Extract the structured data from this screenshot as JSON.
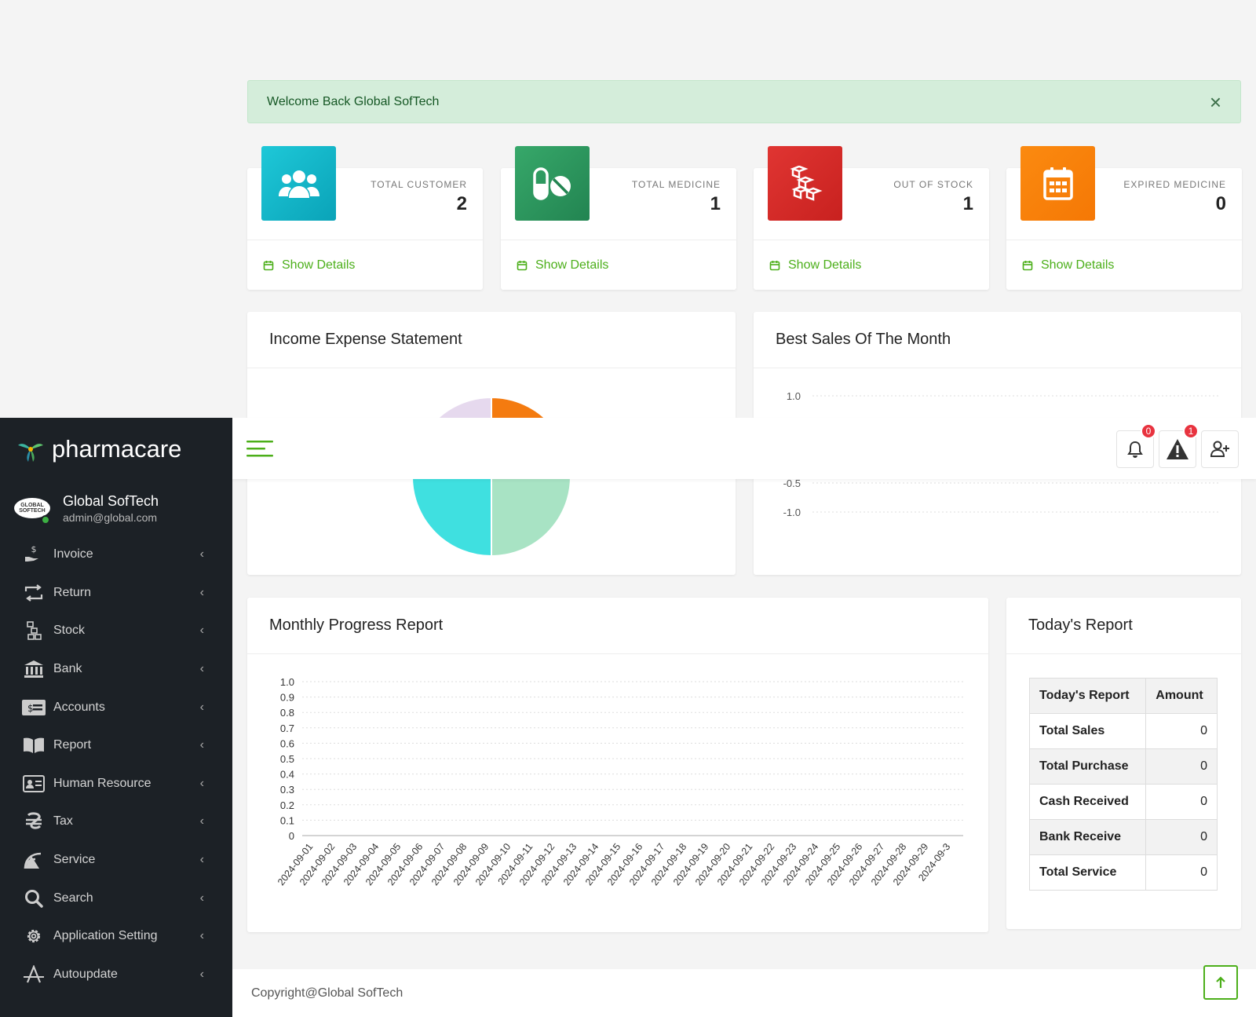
{
  "alert": {
    "message": "Welcome Back Global SofTech",
    "close": "×"
  },
  "stats": [
    {
      "label": "TOTAL CUSTOMER",
      "value": "2",
      "link": "Show Details",
      "color": "#17b3c8",
      "icon": "users-icon"
    },
    {
      "label": "TOTAL MEDICINE",
      "value": "1",
      "link": "Show Details",
      "color": "#2e9e62",
      "icon": "pills-icon"
    },
    {
      "label": "OUT OF STOCK",
      "value": "1",
      "link": "Show Details",
      "color": "#d8302c",
      "icon": "boxes-icon"
    },
    {
      "label": "EXPIRED MEDICINE",
      "value": "0",
      "link": "Show Details",
      "color": "#f98a0e",
      "icon": "calendar-icon"
    }
  ],
  "panels": {
    "income": "Income Expense Statement",
    "best_sales": "Best Sales Of The Month",
    "monthly": "Monthly Progress Report",
    "today": "Today's Report"
  },
  "chart_data": [
    {
      "type": "pie",
      "title": "",
      "slices": [
        {
          "value": 25,
          "color": "#f47b10"
        },
        {
          "value": 25,
          "color": "#a8e3c4"
        },
        {
          "value": 25,
          "color": "#3fe0e0"
        },
        {
          "value": 25,
          "color": "#e6d9ee"
        }
      ]
    },
    {
      "type": "line",
      "title": "",
      "y_ticks": [
        "1.0",
        "-0.5",
        "-1.0"
      ],
      "ylim": [
        -1,
        1
      ],
      "series": []
    },
    {
      "type": "line",
      "title": "",
      "y_ticks": [
        "1.0",
        "0.9",
        "0.8",
        "0.7",
        "0.6",
        "0.5",
        "0.4",
        "0.3",
        "0.2",
        "0.1",
        "0"
      ],
      "ylim": [
        0,
        1
      ],
      "categories": [
        "2024-09-01",
        "2024-09-02",
        "2024-09-03",
        "2024-09-04",
        "2024-09-05",
        "2024-09-06",
        "2024-09-07",
        "2024-09-08",
        "2024-09-09",
        "2024-09-10",
        "2024-09-11",
        "2024-09-12",
        "2024-09-13",
        "2024-09-14",
        "2024-09-15",
        "2024-09-16",
        "2024-09-17",
        "2024-09-18",
        "2024-09-19",
        "2024-09-20",
        "2024-09-21",
        "2024-09-22",
        "2024-09-23",
        "2024-09-24",
        "2024-09-25",
        "2024-09-26",
        "2024-09-27",
        "2024-09-28",
        "2024-09-29",
        "2024-09-3"
      ],
      "grid": true,
      "series": []
    }
  ],
  "today_report": {
    "header": [
      "Today's Report",
      "Amount"
    ],
    "rows": [
      {
        "label": "Total Sales",
        "amount": "0"
      },
      {
        "label": "Total Purchase",
        "amount": "0"
      },
      {
        "label": "Cash Received",
        "amount": "0"
      },
      {
        "label": "Bank Receive",
        "amount": "0"
      },
      {
        "label": "Total Service",
        "amount": "0"
      }
    ]
  },
  "sidebar": {
    "brand": "pharmacare",
    "user_name": "Global SofTech",
    "user_email": "admin@global.com",
    "logo_text": "GLOBAL SOFTECH",
    "items": [
      {
        "label": "Invoice",
        "icon": "hand-dollar-icon"
      },
      {
        "label": "Return",
        "icon": "return-arrows-icon"
      },
      {
        "label": "Stock",
        "icon": "stock-boxes-icon"
      },
      {
        "label": "Bank",
        "icon": "bank-icon"
      },
      {
        "label": "Accounts",
        "icon": "money-check-icon"
      },
      {
        "label": "Report",
        "icon": "book-icon"
      },
      {
        "label": "Human Resource",
        "icon": "id-card-icon"
      },
      {
        "label": "Tax",
        "icon": "tax-icon"
      },
      {
        "label": "Service",
        "icon": "satellite-dish-icon"
      },
      {
        "label": "Search",
        "icon": "search-icon"
      },
      {
        "label": "Application Setting",
        "icon": "gear-icon"
      },
      {
        "label": "Autoupdate",
        "icon": "autoupdate-icon"
      }
    ]
  },
  "topbar": {
    "notifications": "0",
    "alerts": "1"
  },
  "footer": {
    "text": "Copyright@Global SofTech"
  }
}
